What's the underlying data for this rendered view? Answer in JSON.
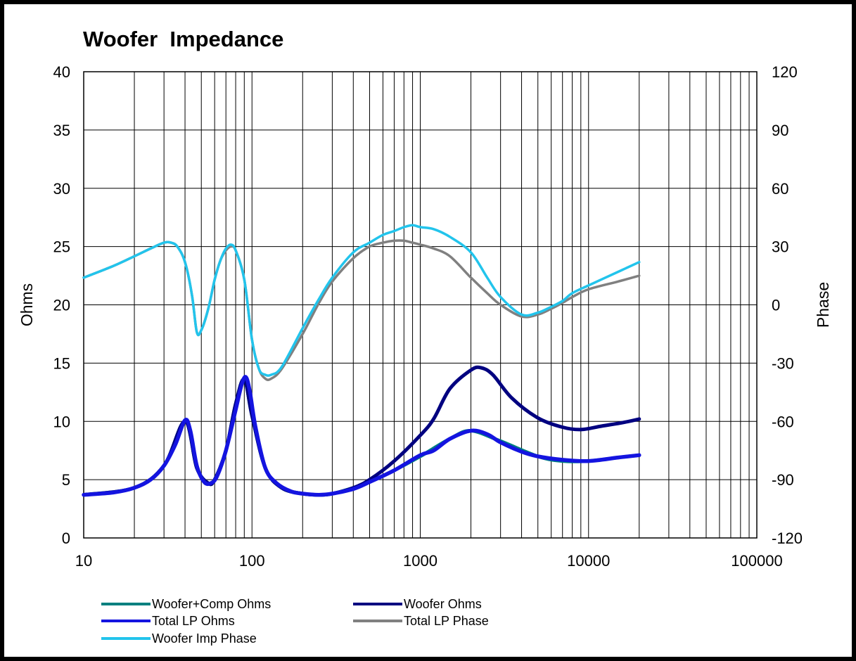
{
  "chart_data": {
    "type": "line",
    "title": "Woofer  Impedance",
    "xlabel": "",
    "ylabel": "Ohms",
    "y2label": "Phase",
    "xscale": "log",
    "xlim": [
      10,
      100000
    ],
    "ylim": [
      0,
      40
    ],
    "y2lim": [
      -120,
      120
    ],
    "grid": true,
    "legend_position": "bottom",
    "x_ticks": [
      "10",
      "100",
      "1000",
      "10000",
      "100000"
    ],
    "y_ticks": [
      "0",
      "5",
      "10",
      "15",
      "20",
      "25",
      "30",
      "35",
      "40"
    ],
    "y2_ticks": [
      "-120",
      "-90",
      "-60",
      "-30",
      "0",
      "30",
      "60",
      "90",
      "120"
    ],
    "series": [
      {
        "name": "Woofer+Comp Ohms",
        "color": "#00807F",
        "axis": "left",
        "x": [
          10,
          20,
          30,
          40,
          47,
          55,
          60,
          70,
          80,
          90,
          100,
          120,
          150,
          200,
          250,
          300,
          400,
          500,
          700,
          1000,
          1500,
          2000,
          3000,
          5000,
          7000,
          10000,
          15000,
          20000
        ],
        "y": [
          3.7,
          4.3,
          6.2,
          10.0,
          6.0,
          4.7,
          5.0,
          7.5,
          11.5,
          13.6,
          10.5,
          6.0,
          4.3,
          3.8,
          3.7,
          3.8,
          4.3,
          4.8,
          5.8,
          7.0,
          8.5,
          9.2,
          8.3,
          7.0,
          6.6,
          6.6,
          6.9,
          7.1
        ]
      },
      {
        "name": "Woofer Ohms",
        "color": "#000080",
        "axis": "left",
        "x": [
          10,
          20,
          30,
          40,
          47,
          55,
          60,
          70,
          80,
          90,
          100,
          120,
          150,
          200,
          250,
          300,
          400,
          500,
          700,
          1000,
          1200,
          1500,
          2000,
          2300,
          2700,
          3500,
          5000,
          7000,
          9000,
          12000,
          16000,
          20000
        ],
        "y": [
          3.7,
          4.3,
          6.2,
          10.0,
          6.0,
          4.7,
          5.0,
          7.5,
          11.5,
          13.6,
          10.5,
          6.0,
          4.3,
          3.8,
          3.7,
          3.8,
          4.3,
          5.0,
          6.6,
          8.8,
          10.2,
          12.8,
          14.4,
          14.6,
          14.0,
          12.0,
          10.3,
          9.5,
          9.3,
          9.6,
          9.9,
          10.2
        ]
      },
      {
        "name": "Total LP Ohms",
        "color": "#1414E0",
        "axis": "left",
        "x": [
          10,
          15,
          20,
          25,
          30,
          35,
          40,
          43,
          47,
          52,
          57,
          62,
          70,
          80,
          87,
          92,
          97,
          105,
          120,
          140,
          170,
          200,
          250,
          300,
          400,
          500,
          700,
          1000,
          1200,
          1500,
          2000,
          2500,
          3000,
          4000,
          5000,
          7000,
          10000,
          15000,
          20000
        ],
        "y": [
          3.7,
          3.9,
          4.3,
          5.0,
          6.2,
          8.0,
          10.1,
          9.2,
          6.2,
          4.8,
          4.7,
          5.3,
          7.5,
          11.0,
          13.2,
          13.8,
          12.6,
          9.5,
          6.0,
          4.7,
          4.0,
          3.8,
          3.7,
          3.8,
          4.2,
          4.8,
          5.8,
          7.1,
          7.5,
          8.5,
          9.2,
          8.9,
          8.2,
          7.4,
          7.0,
          6.7,
          6.6,
          6.9,
          7.1
        ]
      },
      {
        "name": "Total LP Phase",
        "color": "#808080",
        "axis": "right",
        "x": [
          10,
          15,
          20,
          25,
          30,
          33,
          36,
          40,
          44,
          47,
          50,
          55,
          60,
          65,
          70,
          75,
          80,
          90,
          100,
          110,
          120,
          130,
          150,
          200,
          250,
          300,
          400,
          500,
          600,
          700,
          800,
          900,
          1000,
          1200,
          1500,
          2000,
          2500,
          3000,
          4000,
          5000,
          6000,
          7000,
          8000,
          10000,
          15000,
          20000
        ],
        "y": [
          14,
          20,
          25,
          29,
          32,
          32,
          30,
          22,
          5,
          -14,
          -13,
          -2,
          13,
          23,
          28,
          30,
          28,
          13,
          -18,
          -33,
          -38,
          -38,
          -33,
          -15,
          1,
          12,
          24,
          30,
          32,
          33,
          33,
          32,
          31,
          29,
          25,
          14,
          6,
          0,
          -6,
          -5,
          -2,
          1,
          4,
          8,
          12,
          15
        ]
      },
      {
        "name": "Woofer Imp Phase",
        "color": "#22C4EC",
        "axis": "right",
        "x": [
          10,
          15,
          20,
          25,
          30,
          33,
          36,
          40,
          44,
          47,
          50,
          55,
          60,
          65,
          70,
          75,
          80,
          90,
          100,
          110,
          120,
          130,
          150,
          200,
          250,
          300,
          400,
          500,
          600,
          700,
          800,
          900,
          1000,
          1200,
          1500,
          2000,
          2500,
          3000,
          4000,
          5000,
          6000,
          7000,
          8000,
          10000,
          15000,
          20000
        ],
        "y": [
          14,
          20,
          25,
          29,
          32,
          32,
          30,
          22,
          5,
          -14,
          -13,
          -2,
          13,
          23,
          29,
          31,
          28,
          13,
          -18,
          -33,
          -36,
          -36,
          -32,
          -12,
          3,
          14,
          27,
          32,
          36,
          38,
          40,
          41,
          40,
          39,
          35,
          27,
          14,
          4,
          -5,
          -4,
          -1,
          2,
          6,
          10,
          17,
          22
        ]
      }
    ]
  }
}
